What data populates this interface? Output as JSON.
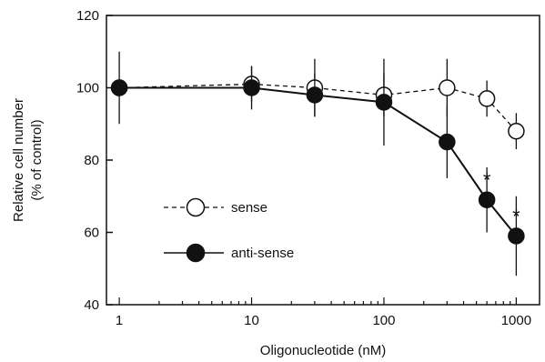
{
  "chart_data": {
    "type": "line",
    "xscale": "log",
    "xlim": [
      0.8,
      1500
    ],
    "ylim": [
      40,
      120
    ],
    "xlabel": "Oligonucleotide (nM)",
    "ylabel_line1": "Relative cell number",
    "ylabel_line2": "(% of control)",
    "xticks": [
      1,
      10,
      100,
      1000
    ],
    "xtick_labels": [
      "1",
      "10",
      "100",
      "1000"
    ],
    "yticks": [
      40,
      60,
      80,
      100,
      120
    ],
    "ytick_labels": [
      "40",
      "60",
      "80",
      "100",
      "120"
    ],
    "series": [
      {
        "name": "sense",
        "marker": "open-circle",
        "line": "dashed",
        "x": [
          1,
          10,
          30,
          100,
          300,
          600,
          1000
        ],
        "y": [
          100,
          101,
          100,
          98,
          100,
          97,
          88
        ],
        "err": [
          0,
          5,
          8,
          6,
          8,
          5,
          5
        ]
      },
      {
        "name": "anti-sense",
        "marker": "filled-circle",
        "line": "solid",
        "x": [
          1,
          10,
          30,
          100,
          300,
          600,
          1000
        ],
        "y": [
          100,
          100,
          98,
          96,
          85,
          69,
          59
        ],
        "err": [
          10,
          6,
          6,
          12,
          10,
          9,
          11
        ]
      }
    ],
    "annotations": [
      {
        "text": "*",
        "x": 600,
        "y": 69
      },
      {
        "text": "*",
        "x": 1000,
        "y": 59
      }
    ],
    "legend_placement": "bottom-left",
    "grid": false,
    "colors": {
      "axis": "#111111",
      "marker_fill": "#111111",
      "open_fill": "#ffffff"
    }
  }
}
